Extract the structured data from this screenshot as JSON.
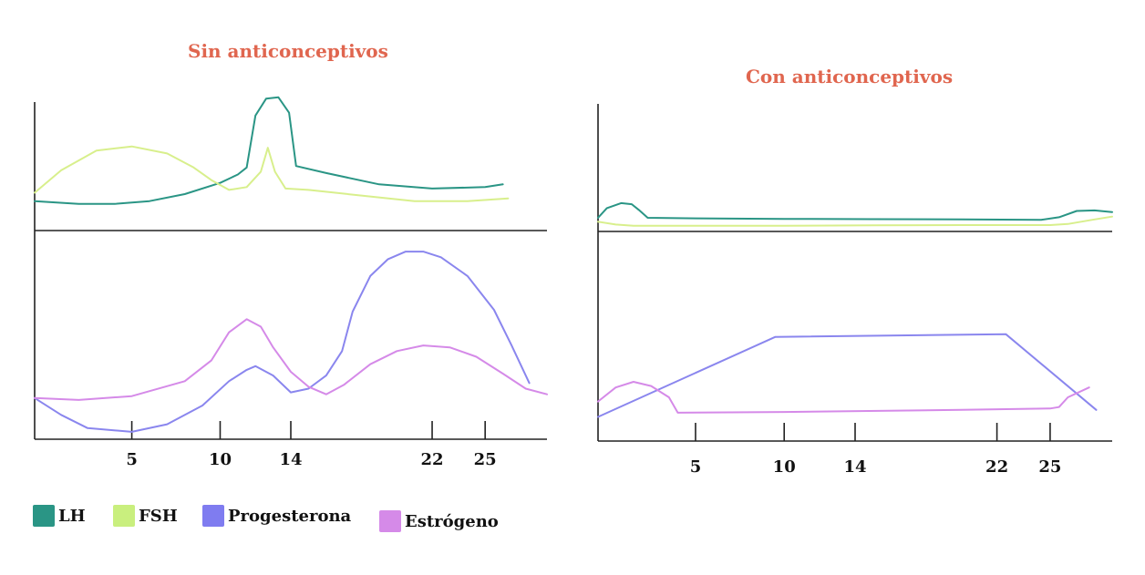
{
  "colors": {
    "title": "#e0664f",
    "LH": "#2a9585",
    "FSH": "#d8ef8c",
    "Progesterona": "#8a86ee",
    "Estrogeno": "#d58ae8",
    "axis": "#222222"
  },
  "legend": [
    {
      "label": "LH",
      "color": "#2a9585"
    },
    {
      "label": "FSH",
      "color": "#c9ef7e"
    },
    {
      "label": "Progesterona",
      "color": "#7f7cf0"
    },
    {
      "label": "Estrógeno",
      "color": "#d58ae8"
    }
  ],
  "chart_data": [
    {
      "type": "line",
      "title": "Sin anticonceptivos",
      "xlim": [
        -0.5,
        28.5
      ],
      "x_ticks": [
        5,
        10,
        14,
        22,
        25
      ],
      "panels": [
        {
          "name": "gonadotropinas",
          "ylim": [
            0,
            100
          ],
          "series": [
            {
              "name": "LH",
              "points": [
                [
                  -0.5,
                  19
                ],
                [
                  2,
                  17
                ],
                [
                  4,
                  17
                ],
                [
                  6,
                  19
                ],
                [
                  8,
                  24
                ],
                [
                  10,
                  32
                ],
                [
                  11,
                  38
                ],
                [
                  11.5,
                  43
                ],
                [
                  12,
                  80
                ],
                [
                  12.6,
                  92
                ],
                [
                  13.3,
                  93
                ],
                [
                  13.9,
                  82
                ],
                [
                  14.3,
                  44
                ],
                [
                  16,
                  39
                ],
                [
                  19,
                  31
                ],
                [
                  22,
                  28
                ],
                [
                  25,
                  29
                ],
                [
                  26,
                  31
                ]
              ]
            },
            {
              "name": "FSH",
              "points": [
                [
                  -0.5,
                  25
                ],
                [
                  1,
                  41
                ],
                [
                  3,
                  55
                ],
                [
                  5,
                  58
                ],
                [
                  7,
                  53
                ],
                [
                  8.5,
                  43
                ],
                [
                  9.5,
                  34
                ],
                [
                  10.5,
                  27
                ],
                [
                  11.5,
                  29
                ],
                [
                  12.3,
                  40
                ],
                [
                  12.7,
                  57
                ],
                [
                  13.1,
                  40
                ],
                [
                  13.7,
                  28
                ],
                [
                  15,
                  27
                ],
                [
                  18,
                  23
                ],
                [
                  21,
                  19
                ],
                [
                  24,
                  19
                ],
                [
                  26.3,
                  21
                ]
              ]
            }
          ]
        },
        {
          "name": "hormonas ovaricas",
          "ylim": [
            0,
            100
          ],
          "series": [
            {
              "name": "Progesterona",
              "points": [
                [
                  -0.5,
                  20
                ],
                [
                  1,
                  11
                ],
                [
                  2.5,
                  4
                ],
                [
                  5,
                  2
                ],
                [
                  7,
                  6
                ],
                [
                  9,
                  16
                ],
                [
                  10.5,
                  29
                ],
                [
                  11.5,
                  35
                ],
                [
                  12,
                  37
                ],
                [
                  13,
                  32
                ],
                [
                  14,
                  23
                ],
                [
                  15,
                  25
                ],
                [
                  16,
                  32
                ],
                [
                  16.9,
                  45
                ],
                [
                  17.5,
                  66
                ],
                [
                  18.5,
                  85
                ],
                [
                  19.5,
                  94
                ],
                [
                  20.5,
                  98
                ],
                [
                  21.5,
                  98
                ],
                [
                  22.5,
                  95
                ],
                [
                  24,
                  85
                ],
                [
                  25.5,
                  67
                ],
                [
                  26.5,
                  48
                ],
                [
                  27.5,
                  28
                ]
              ]
            },
            {
              "name": "Estrógeno",
              "points": [
                [
                  -0.5,
                  20
                ],
                [
                  2,
                  19
                ],
                [
                  5,
                  21
                ],
                [
                  8,
                  29
                ],
                [
                  9.5,
                  40
                ],
                [
                  10.5,
                  55
                ],
                [
                  11.5,
                  62
                ],
                [
                  12.3,
                  58
                ],
                [
                  13,
                  47
                ],
                [
                  14,
                  34
                ],
                [
                  15,
                  26
                ],
                [
                  16,
                  22
                ],
                [
                  17,
                  27
                ],
                [
                  18.5,
                  38
                ],
                [
                  20,
                  45
                ],
                [
                  21.5,
                  48
                ],
                [
                  23,
                  47
                ],
                [
                  24.5,
                  42
                ],
                [
                  26,
                  33
                ],
                [
                  27.3,
                  25
                ],
                [
                  28.5,
                  22
                ]
              ]
            }
          ]
        }
      ]
    },
    {
      "type": "line",
      "title": "Con anticonceptivos",
      "xlim": [
        -0.5,
        28.5
      ],
      "x_ticks": [
        5,
        10,
        14,
        22,
        25
      ],
      "panels": [
        {
          "name": "gonadotropinas",
          "ylim": [
            0,
            100
          ],
          "series": [
            {
              "name": "LH",
              "points": [
                [
                  -0.5,
                  21
                ],
                [
                  0,
                  38
                ],
                [
                  0.8,
                  47
                ],
                [
                  1.4,
                  45
                ],
                [
                  1.8,
                  35
                ],
                [
                  2.3,
                  21
                ],
                [
                  5,
                  20
                ],
                [
                  10,
                  19
                ],
                [
                  15,
                  18.5
                ],
                [
                  20,
                  18
                ],
                [
                  24.5,
                  17.5
                ],
                [
                  25.5,
                  22
                ],
                [
                  26.5,
                  33
                ],
                [
                  27.5,
                  34
                ],
                [
                  28.5,
                  31
                ]
              ]
            },
            {
              "name": "FSH",
              "points": [
                [
                  -0.5,
                  14
                ],
                [
                  0.5,
                  9
                ],
                [
                  1.5,
                  7
                ],
                [
                  5,
                  7
                ],
                [
                  10,
                  7
                ],
                [
                  15,
                  7.5
                ],
                [
                  20,
                  8
                ],
                [
                  25,
                  8
                ],
                [
                  26,
                  10
                ],
                [
                  27.5,
                  18
                ],
                [
                  28.5,
                  23
                ]
              ]
            }
          ]
        },
        {
          "name": "hormonas ovaricas",
          "ylim": [
            0,
            100
          ],
          "series": [
            {
              "name": "Progesterona",
              "points": [
                [
                  -0.5,
                  12
                ],
                [
                  9.5,
                  69
                ],
                [
                  22.5,
                  71
                ],
                [
                  27.6,
                  17
                ]
              ]
            },
            {
              "name": "Estrógeno",
              "points": [
                [
                  -0.5,
                  23
                ],
                [
                  0.5,
                  33
                ],
                [
                  1.5,
                  37
                ],
                [
                  2.5,
                  34
                ],
                [
                  3.5,
                  26
                ],
                [
                  4,
                  15
                ],
                [
                  10,
                  15.5
                ],
                [
                  20,
                  17
                ],
                [
                  25,
                  18
                ],
                [
                  25.5,
                  19
                ],
                [
                  26,
                  26
                ],
                [
                  27.2,
                  33
                ]
              ]
            }
          ]
        }
      ]
    }
  ]
}
